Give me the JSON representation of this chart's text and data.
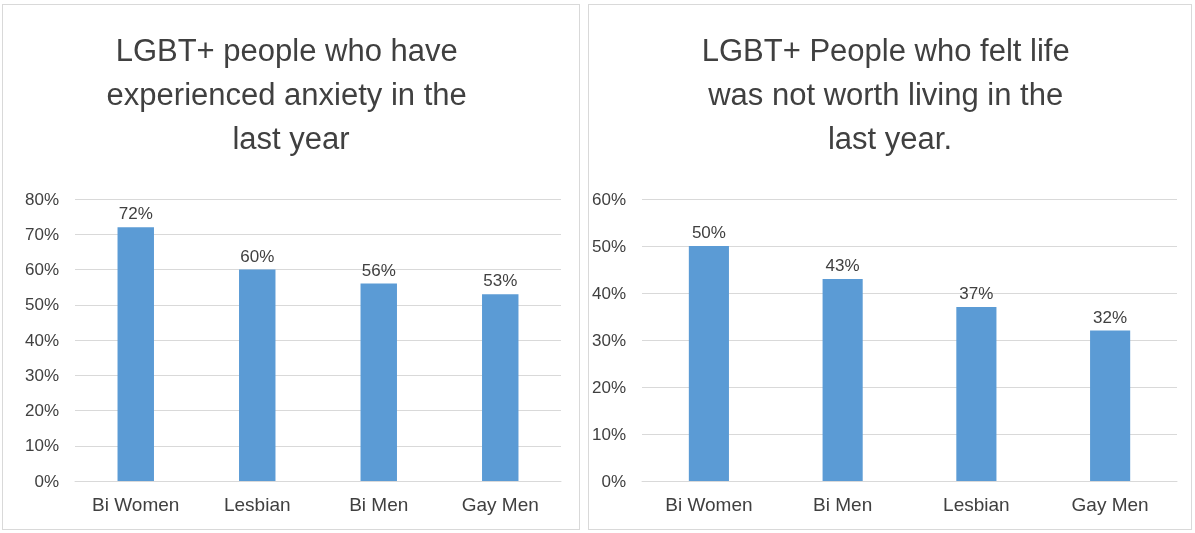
{
  "chart_data": [
    {
      "type": "bar",
      "title": "LGBT+ people who have experienced anxiety in the last year",
      "categories": [
        "Bi Women",
        "Lesbian",
        "Bi Men",
        "Gay Men"
      ],
      "values": [
        72,
        60,
        56,
        53
      ],
      "value_labels": [
        "72%",
        "60%",
        "56%",
        "53%"
      ],
      "color": "#5b9bd5",
      "ylim": [
        0,
        80
      ],
      "yticks": [
        {
          "value": 0,
          "label": "0%"
        },
        {
          "value": 10,
          "label": "10%"
        },
        {
          "value": 20,
          "label": "20%"
        },
        {
          "value": 30,
          "label": "30%"
        },
        {
          "value": 40,
          "label": "40%"
        },
        {
          "value": 50,
          "label": "50%"
        },
        {
          "value": 60,
          "label": "60%"
        },
        {
          "value": 70,
          "label": "70%"
        },
        {
          "value": 80,
          "label": "80%"
        }
      ],
      "grid": "y"
    },
    {
      "type": "bar",
      "title": "LGBT+ People who felt life was not worth living in the last year.",
      "categories": [
        "Bi Women",
        "Bi Men",
        "Lesbian",
        "Gay Men"
      ],
      "values": [
        50,
        43,
        37,
        32
      ],
      "value_labels": [
        "50%",
        "43%",
        "37%",
        "32%"
      ],
      "color": "#5b9bd5",
      "ylim": [
        0,
        60
      ],
      "yticks": [
        {
          "value": 0,
          "label": "0%"
        },
        {
          "value": 10,
          "label": "10%"
        },
        {
          "value": 20,
          "label": "20%"
        },
        {
          "value": 30,
          "label": "30%"
        },
        {
          "value": 40,
          "label": "40%"
        },
        {
          "value": 50,
          "label": "50%"
        },
        {
          "value": 60,
          "label": "60%"
        }
      ],
      "grid": "y"
    }
  ]
}
